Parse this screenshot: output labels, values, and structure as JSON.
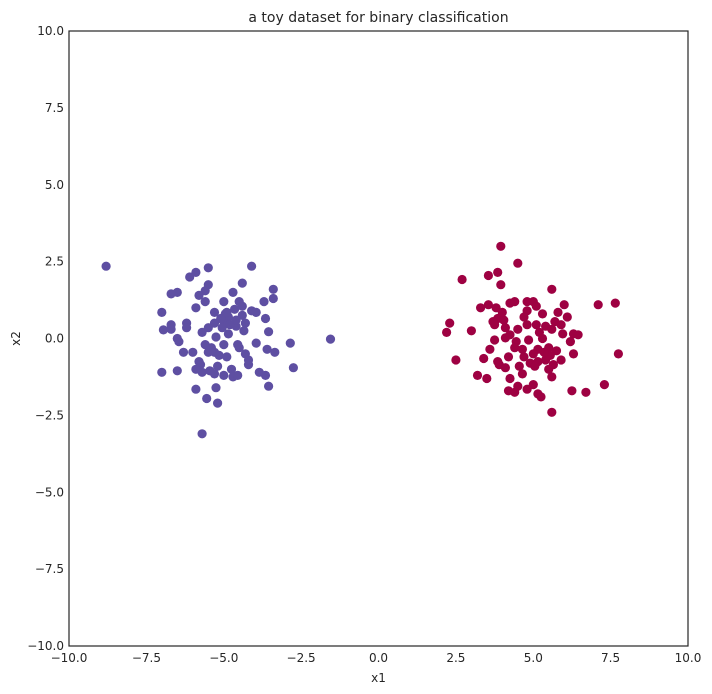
{
  "chart_data": {
    "type": "scatter",
    "title": "a toy dataset for binary classification",
    "xlabel": "x1",
    "ylabel": "x2",
    "xlim": [
      -10,
      10
    ],
    "ylim": [
      -10,
      10
    ],
    "xticks": [
      -10,
      -7.5,
      -5,
      -2.5,
      0,
      2.5,
      5,
      7.5,
      10
    ],
    "yticks": [
      -10,
      -7.5,
      -5,
      -2.5,
      0,
      2.5,
      5,
      7.5,
      10
    ],
    "xtick_labels": [
      "−10.0",
      "−7.5",
      "−5.0",
      "−2.5",
      "0.0",
      "2.5",
      "5.0",
      "7.5",
      "10.0"
    ],
    "ytick_labels": [
      "−10.0",
      "−7.5",
      "−5.0",
      "−2.5",
      "0.0",
      "2.5",
      "5.0",
      "7.5",
      "10.0"
    ],
    "grid": false,
    "series": [
      {
        "color": "#5e4fa2",
        "points": [
          [
            -8.8,
            2.35
          ],
          [
            -1.55,
            -0.02
          ],
          [
            -5.7,
            -3.1
          ],
          [
            -5.5,
            2.3
          ],
          [
            -4.1,
            2.35
          ],
          [
            -5.9,
            2.15
          ],
          [
            -6.1,
            2.0
          ],
          [
            -6.5,
            1.5
          ],
          [
            -6.7,
            1.45
          ],
          [
            -5.6,
            1.55
          ],
          [
            -5.5,
            1.75
          ],
          [
            -5.8,
            1.4
          ],
          [
            -4.7,
            1.5
          ],
          [
            -4.4,
            1.8
          ],
          [
            -3.4,
            1.6
          ],
          [
            -3.4,
            1.3
          ],
          [
            -3.7,
            1.2
          ],
          [
            -4.5,
            1.2
          ],
          [
            -5.0,
            1.2
          ],
          [
            -5.6,
            1.2
          ],
          [
            -5.9,
            1.0
          ],
          [
            -7.0,
            0.85
          ],
          [
            -6.7,
            0.45
          ],
          [
            -6.2,
            0.5
          ],
          [
            -5.3,
            0.85
          ],
          [
            -4.95,
            0.8
          ],
          [
            -4.85,
            0.7
          ],
          [
            -4.65,
            0.95
          ],
          [
            -4.4,
            0.75
          ],
          [
            -4.1,
            0.9
          ],
          [
            -3.95,
            0.85
          ],
          [
            -3.65,
            0.65
          ],
          [
            -5.0,
            0.55
          ],
          [
            -5.3,
            0.5
          ],
          [
            -5.5,
            0.35
          ],
          [
            -5.7,
            0.2
          ],
          [
            -6.2,
            0.35
          ],
          [
            -6.7,
            0.3
          ],
          [
            -6.95,
            0.28
          ],
          [
            -4.3,
            0.5
          ],
          [
            -4.6,
            0.4
          ],
          [
            -3.55,
            0.22
          ],
          [
            -4.8,
            0.45
          ],
          [
            -4.35,
            0.25
          ],
          [
            -6.5,
            0.0
          ],
          [
            -6.45,
            -0.1
          ],
          [
            -5.6,
            -0.2
          ],
          [
            -5.4,
            -0.3
          ],
          [
            -5.0,
            -0.2
          ],
          [
            -4.5,
            -0.3
          ],
          [
            -3.95,
            -0.15
          ],
          [
            -3.6,
            -0.35
          ],
          [
            -2.85,
            -0.15
          ],
          [
            -6.3,
            -0.45
          ],
          [
            -5.5,
            -0.45
          ],
          [
            -5.3,
            -0.45
          ],
          [
            -4.9,
            -0.6
          ],
          [
            -4.3,
            -0.5
          ],
          [
            -3.35,
            -0.45
          ],
          [
            -4.2,
            -0.85
          ],
          [
            -5.75,
            -0.85
          ],
          [
            -5.2,
            -0.9
          ],
          [
            -5.9,
            -1.0
          ],
          [
            -5.45,
            -1.05
          ],
          [
            -4.75,
            -1.0
          ],
          [
            -4.2,
            -0.7
          ],
          [
            -2.75,
            -0.95
          ],
          [
            -7.0,
            -1.1
          ],
          [
            -6.5,
            -1.05
          ],
          [
            -5.7,
            -1.1
          ],
          [
            -5.3,
            -1.15
          ],
          [
            -5.0,
            -1.2
          ],
          [
            -4.7,
            -1.25
          ],
          [
            -4.55,
            -1.2
          ],
          [
            -3.85,
            -1.1
          ],
          [
            -3.65,
            -1.2
          ],
          [
            -5.9,
            -1.65
          ],
          [
            -5.25,
            -1.6
          ],
          [
            -3.55,
            -1.55
          ],
          [
            -5.55,
            -1.95
          ],
          [
            -5.2,
            -2.1
          ],
          [
            -5.15,
            -0.55
          ],
          [
            -4.55,
            -0.2
          ],
          [
            -4.85,
            0.15
          ],
          [
            -5.05,
            0.35
          ],
          [
            -5.25,
            0.05
          ],
          [
            -4.9,
            0.85
          ],
          [
            -5.1,
            0.65
          ],
          [
            -4.6,
            0.6
          ],
          [
            -4.4,
            1.05
          ],
          [
            -6.0,
            -0.45
          ],
          [
            -5.8,
            -0.75
          ]
        ]
      },
      {
        "color": "#9e0142",
        "points": [
          [
            3.95,
            3.0
          ],
          [
            4.5,
            2.45
          ],
          [
            3.85,
            2.15
          ],
          [
            3.55,
            2.05
          ],
          [
            2.7,
            1.92
          ],
          [
            3.95,
            1.75
          ],
          [
            5.6,
            1.6
          ],
          [
            4.25,
            1.15
          ],
          [
            4.4,
            1.2
          ],
          [
            3.55,
            1.1
          ],
          [
            3.8,
            1.0
          ],
          [
            4.8,
            1.2
          ],
          [
            5.0,
            1.2
          ],
          [
            5.1,
            1.05
          ],
          [
            6.0,
            1.1
          ],
          [
            7.1,
            1.1
          ],
          [
            7.65,
            1.15
          ],
          [
            3.3,
            1.0
          ],
          [
            4.8,
            0.9
          ],
          [
            5.3,
            0.8
          ],
          [
            5.8,
            0.85
          ],
          [
            6.1,
            0.7
          ],
          [
            3.85,
            0.65
          ],
          [
            4.05,
            0.6
          ],
          [
            4.7,
            0.7
          ],
          [
            5.7,
            0.55
          ],
          [
            2.3,
            0.5
          ],
          [
            3.75,
            0.45
          ],
          [
            4.1,
            0.35
          ],
          [
            4.5,
            0.3
          ],
          [
            5.1,
            0.45
          ],
          [
            5.4,
            0.4
          ],
          [
            5.9,
            0.45
          ],
          [
            4.8,
            0.45
          ],
          [
            3.0,
            0.25
          ],
          [
            2.2,
            0.2
          ],
          [
            5.2,
            0.2
          ],
          [
            5.6,
            0.3
          ],
          [
            6.3,
            0.15
          ],
          [
            6.45,
            0.12
          ],
          [
            4.1,
            0.02
          ],
          [
            3.75,
            -0.05
          ],
          [
            4.45,
            -0.1
          ],
          [
            4.85,
            -0.05
          ],
          [
            5.3,
            0.0
          ],
          [
            6.2,
            -0.1
          ],
          [
            3.6,
            -0.35
          ],
          [
            4.4,
            -0.3
          ],
          [
            5.15,
            -0.35
          ],
          [
            5.5,
            -0.3
          ],
          [
            5.75,
            -0.4
          ],
          [
            6.3,
            -0.5
          ],
          [
            7.75,
            -0.5
          ],
          [
            2.5,
            -0.7
          ],
          [
            3.4,
            -0.65
          ],
          [
            4.2,
            -0.6
          ],
          [
            4.7,
            -0.6
          ],
          [
            5.0,
            -0.5
          ],
          [
            5.4,
            -0.7
          ],
          [
            5.9,
            -0.7
          ],
          [
            3.9,
            -0.85
          ],
          [
            4.1,
            -0.95
          ],
          [
            4.55,
            -0.9
          ],
          [
            4.9,
            -0.8
          ],
          [
            5.15,
            -0.75
          ],
          [
            5.65,
            -0.85
          ],
          [
            3.2,
            -1.2
          ],
          [
            3.5,
            -1.3
          ],
          [
            4.25,
            -1.3
          ],
          [
            4.65,
            -1.15
          ],
          [
            5.5,
            -1.0
          ],
          [
            5.6,
            -1.25
          ],
          [
            4.5,
            -1.55
          ],
          [
            5.0,
            -1.5
          ],
          [
            4.2,
            -1.7
          ],
          [
            4.4,
            -1.75
          ],
          [
            4.8,
            -1.65
          ],
          [
            5.15,
            -1.8
          ],
          [
            5.25,
            -1.9
          ],
          [
            6.25,
            -1.7
          ],
          [
            6.7,
            -1.75
          ],
          [
            7.3,
            -1.5
          ],
          [
            5.6,
            -2.4
          ],
          [
            3.85,
            -0.75
          ],
          [
            5.05,
            -0.9
          ],
          [
            4.25,
            0.12
          ],
          [
            3.7,
            0.55
          ],
          [
            5.55,
            -0.55
          ],
          [
            4.65,
            -0.35
          ],
          [
            5.95,
            0.15
          ],
          [
            4.0,
            0.85
          ],
          [
            5.35,
            -0.45
          ]
        ]
      }
    ]
  }
}
